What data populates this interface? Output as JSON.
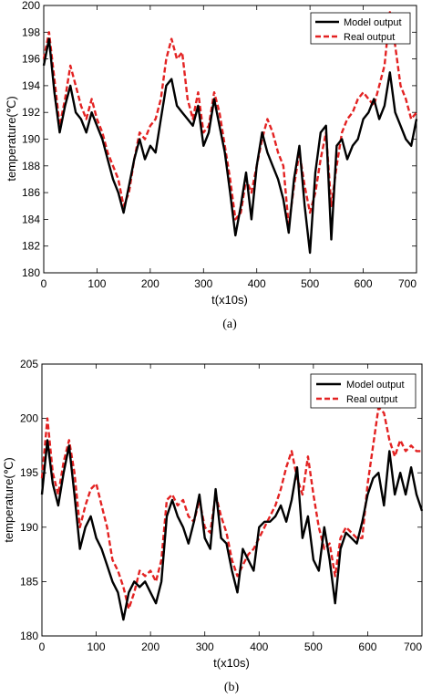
{
  "chart_data": [
    {
      "type": "line",
      "caption": "(a)",
      "xlabel": "t(x10s)",
      "ylabel": "temperature(℃)",
      "xlim": [
        0,
        700
      ],
      "ylim": [
        180,
        200
      ],
      "xticks": [
        "0",
        "100",
        "200",
        "300",
        "400",
        "500",
        "600",
        "700"
      ],
      "yticks": [
        "180",
        "182",
        "184",
        "186",
        "188",
        "190",
        "192",
        "194",
        "196",
        "198",
        "200"
      ],
      "legend_position": "top-right",
      "colors": {
        "model": "#000000",
        "real": "#e32222"
      },
      "series": [
        {
          "name": "Model output",
          "x": [
            0,
            10,
            20,
            30,
            40,
            50,
            60,
            70,
            80,
            90,
            100,
            110,
            120,
            130,
            140,
            150,
            160,
            170,
            180,
            190,
            200,
            210,
            220,
            230,
            240,
            250,
            260,
            270,
            280,
            290,
            300,
            310,
            320,
            330,
            340,
            350,
            360,
            370,
            380,
            390,
            400,
            410,
            420,
            430,
            440,
            450,
            460,
            470,
            480,
            490,
            500,
            510,
            520,
            530,
            540,
            550,
            560,
            570,
            580,
            590,
            600,
            610,
            620,
            630,
            640,
            650,
            660,
            670,
            680,
            690,
            700
          ],
          "values": [
            195.5,
            197.5,
            193.5,
            190.5,
            192.5,
            194,
            192,
            191.5,
            190.5,
            192,
            191,
            190,
            188.5,
            187,
            186,
            184.5,
            186.5,
            188.5,
            190,
            188.5,
            189.5,
            189,
            191.5,
            194,
            194.5,
            192.5,
            192,
            191.5,
            191,
            192.5,
            189.5,
            190.5,
            193,
            191,
            189,
            186,
            182.8,
            185,
            187.5,
            184,
            188,
            190.5,
            189,
            188,
            187,
            185.5,
            183,
            187,
            189.5,
            185,
            181.5,
            187.5,
            190.5,
            191,
            182.5,
            189.5,
            190,
            188.5,
            189.5,
            190,
            191.5,
            192,
            193,
            191.5,
            192.5,
            195,
            192,
            191,
            190,
            189.5,
            191.5
          ]
        },
        {
          "name": "Real output",
          "x": [
            0,
            10,
            20,
            30,
            40,
            50,
            60,
            70,
            80,
            90,
            100,
            110,
            120,
            130,
            140,
            150,
            160,
            170,
            180,
            190,
            200,
            210,
            220,
            230,
            240,
            250,
            260,
            270,
            280,
            290,
            300,
            310,
            320,
            330,
            340,
            350,
            360,
            370,
            380,
            390,
            400,
            410,
            420,
            430,
            440,
            450,
            460,
            470,
            480,
            490,
            500,
            510,
            520,
            530,
            540,
            550,
            560,
            570,
            580,
            590,
            600,
            610,
            620,
            630,
            640,
            650,
            660,
            670,
            680,
            690,
            700
          ],
          "values": [
            196,
            198,
            194.5,
            191,
            193,
            195.5,
            194,
            192.5,
            191.5,
            193,
            191.5,
            190.5,
            189,
            188,
            187,
            185,
            186,
            188.5,
            190.5,
            190,
            191,
            191.5,
            193,
            196,
            197.5,
            196,
            196.5,
            193,
            191.5,
            193.5,
            190.5,
            191,
            193.5,
            192,
            189.5,
            187,
            184,
            184.5,
            187,
            186,
            188,
            190,
            191.5,
            190.5,
            189,
            188,
            183.5,
            186.5,
            189,
            186.5,
            184.5,
            186,
            188.5,
            190.5,
            185,
            188,
            190.5,
            191.5,
            192,
            193,
            193.5,
            193,
            192.5,
            194,
            195.5,
            199.5,
            197,
            194,
            193,
            191.5,
            192
          ]
        }
      ]
    },
    {
      "type": "line",
      "caption": "(b)",
      "xlabel": "t(x10s)",
      "ylabel": "temperature(℃)",
      "xlim": [
        0,
        700
      ],
      "ylim": [
        180,
        205
      ],
      "xticks": [
        "0",
        "100",
        "200",
        "300",
        "400",
        "500",
        "600",
        "700"
      ],
      "yticks": [
        "180",
        "185",
        "190",
        "195",
        "200",
        "205"
      ],
      "legend_position": "top-right",
      "colors": {
        "model": "#000000",
        "real": "#e32222"
      },
      "series": [
        {
          "name": "Model output",
          "x": [
            0,
            10,
            20,
            30,
            40,
            50,
            60,
            70,
            80,
            90,
            100,
            110,
            120,
            130,
            140,
            150,
            160,
            170,
            180,
            190,
            200,
            210,
            220,
            230,
            240,
            250,
            260,
            270,
            280,
            290,
            300,
            310,
            320,
            330,
            340,
            350,
            360,
            370,
            380,
            390,
            400,
            410,
            420,
            430,
            440,
            450,
            460,
            470,
            480,
            490,
            500,
            510,
            520,
            530,
            540,
            550,
            560,
            570,
            580,
            590,
            600,
            610,
            620,
            630,
            640,
            650,
            660,
            670,
            680,
            690,
            700
          ],
          "values": [
            193,
            198,
            194,
            192,
            195,
            197.5,
            193,
            188,
            190,
            191,
            189,
            188,
            186.5,
            185,
            184,
            181.5,
            184,
            185,
            184.5,
            185,
            184,
            183,
            185,
            191,
            192.5,
            191,
            190,
            188.5,
            190.5,
            193,
            189,
            188,
            193.5,
            189,
            188.5,
            186,
            184,
            188,
            187,
            186,
            190,
            190.5,
            190.5,
            191,
            192,
            190.5,
            192.5,
            195.5,
            189,
            191,
            187,
            186,
            190,
            187,
            183,
            188,
            189.5,
            189,
            188.5,
            190.5,
            193,
            194.5,
            195,
            192,
            197,
            193,
            195,
            193,
            195.5,
            193,
            191.5
          ]
        },
        {
          "name": "Real output",
          "x": [
            0,
            10,
            20,
            30,
            40,
            50,
            60,
            70,
            80,
            90,
            100,
            110,
            120,
            130,
            140,
            150,
            160,
            170,
            180,
            190,
            200,
            210,
            220,
            230,
            240,
            250,
            260,
            270,
            280,
            290,
            300,
            310,
            320,
            330,
            340,
            350,
            360,
            370,
            380,
            390,
            400,
            410,
            420,
            430,
            440,
            450,
            460,
            470,
            480,
            490,
            500,
            510,
            520,
            530,
            540,
            550,
            560,
            570,
            580,
            590,
            600,
            610,
            620,
            630,
            640,
            650,
            660,
            670,
            680,
            690,
            700
          ],
          "values": [
            194.5,
            200,
            195,
            193,
            196,
            198,
            195,
            190,
            192,
            193.5,
            194,
            192,
            190,
            187,
            186,
            184.5,
            182.5,
            184,
            186,
            185.5,
            186,
            185,
            187,
            192.5,
            193,
            192,
            192.5,
            191,
            190.5,
            192.5,
            190,
            189.5,
            193,
            191,
            189.5,
            187,
            185.5,
            186.5,
            187.5,
            188,
            189,
            190,
            191,
            192,
            193.5,
            195.5,
            197,
            194.5,
            193,
            196.5,
            193,
            190,
            188,
            188.5,
            185.5,
            189,
            190,
            189.5,
            189,
            189,
            194,
            197.5,
            201,
            200.5,
            198,
            196.5,
            198,
            197,
            197.5,
            197,
            197
          ]
        }
      ]
    }
  ]
}
